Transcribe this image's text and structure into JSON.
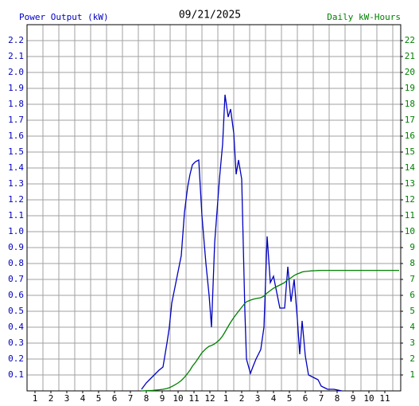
{
  "chart_data": {
    "type": "line",
    "title": "09/21/2025",
    "y_label": "Power Output (kW)",
    "y2_label": "Daily kW-Hours",
    "x": [
      7.7,
      8.0,
      8.2,
      8.4,
      8.6,
      8.8,
      9.05,
      9.3,
      9.45,
      9.6,
      9.8,
      10.0,
      10.2,
      10.4,
      10.6,
      10.75,
      10.9,
      11.1,
      11.3,
      11.5,
      11.75,
      11.95,
      12.1,
      12.3,
      12.6,
      12.8,
      12.95,
      13.15,
      13.3,
      13.5,
      13.65,
      13.8,
      14.0,
      14.2,
      14.3,
      14.55,
      14.7,
      14.9,
      15.2,
      15.4,
      15.6,
      15.8,
      16.0,
      16.2,
      16.4,
      16.7,
      16.9,
      17.1,
      17.3,
      17.5,
      17.65,
      17.8,
      18.0,
      18.2,
      18.4,
      18.6,
      18.8,
      19.0,
      19.2,
      19.4,
      19.8,
      20.3,
      23.9
    ],
    "series": [
      {
        "name": "Power Output (kW)",
        "color": "#0000c0",
        "values": [
          0.01,
          0.05,
          0.07,
          0.09,
          0.11,
          0.13,
          0.15,
          0.3,
          0.4,
          0.55,
          0.65,
          0.75,
          0.85,
          1.12,
          1.28,
          1.36,
          1.42,
          1.44,
          1.45,
          1.1,
          0.8,
          0.6,
          0.4,
          0.93,
          1.33,
          1.55,
          1.86,
          1.72,
          1.77,
          1.62,
          1.36,
          1.45,
          1.33,
          0.5,
          0.2,
          0.11,
          0.15,
          0.2,
          0.26,
          0.4,
          0.97,
          0.68,
          0.72,
          0.62,
          0.52,
          0.52,
          0.78,
          0.56,
          0.7,
          0.45,
          0.23,
          0.44,
          0.22,
          0.1,
          0.09,
          0.08,
          0.07,
          0.03,
          0.02,
          0.01,
          0.01,
          0,
          null
        ]
      },
      {
        "name": "Daily kW-Hours",
        "color": "#008000",
        "axis": "y2",
        "values": [
          0,
          0.01,
          0.02,
          0.03,
          0.05,
          0.07,
          0.1,
          0.15,
          0.2,
          0.27,
          0.38,
          0.5,
          0.65,
          0.85,
          1.1,
          1.3,
          1.55,
          1.8,
          2.1,
          2.4,
          2.65,
          2.8,
          2.85,
          2.95,
          3.2,
          3.45,
          3.7,
          4.05,
          4.3,
          4.6,
          4.8,
          5.0,
          5.25,
          5.5,
          5.6,
          5.7,
          5.75,
          5.8,
          5.85,
          5.95,
          6.15,
          6.3,
          6.45,
          6.55,
          6.65,
          6.8,
          7.0,
          7.1,
          7.25,
          7.35,
          7.4,
          7.47,
          7.5,
          7.52,
          7.54,
          7.55,
          7.56,
          7.57,
          7.57,
          7.57,
          7.57,
          7.57,
          7.57
        ]
      }
    ],
    "xlim": [
      0.5,
      24
    ],
    "xticks": [
      1,
      2,
      3,
      4,
      5,
      6,
      7,
      8,
      9,
      10,
      11,
      12,
      {
        "value": 13,
        "label": "1"
      },
      {
        "value": 14,
        "label": "2"
      },
      {
        "value": 15,
        "label": "3"
      },
      {
        "value": 16,
        "label": "4"
      },
      {
        "value": 17,
        "label": "5"
      },
      {
        "value": 18,
        "label": "6"
      },
      {
        "value": 19,
        "label": "7"
      },
      {
        "value": 20,
        "label": "8"
      },
      {
        "value": 21,
        "label": "9"
      },
      {
        "value": 22,
        "label": "10"
      },
      {
        "value": 23,
        "label": "11"
      }
    ],
    "ylim": [
      0,
      2.3
    ],
    "yticks": [
      0.1,
      0.2,
      0.3,
      0.4,
      0.5,
      0.6,
      0.7,
      0.8,
      0.9,
      {
        "value": 1.0,
        "label": "1.0"
      },
      1.1,
      1.2,
      1.3,
      1.4,
      1.5,
      1.6,
      1.7,
      1.8,
      1.9,
      {
        "value": 2.0,
        "label": "2.0"
      },
      2.1,
      2.2
    ],
    "y2lim": [
      0,
      23
    ],
    "y2ticks": [
      1,
      2,
      3,
      4,
      5,
      6,
      7,
      8,
      9,
      10,
      11,
      12,
      13,
      14,
      15,
      16,
      17,
      18,
      19,
      20,
      21,
      22
    ],
    "grid": true
  }
}
